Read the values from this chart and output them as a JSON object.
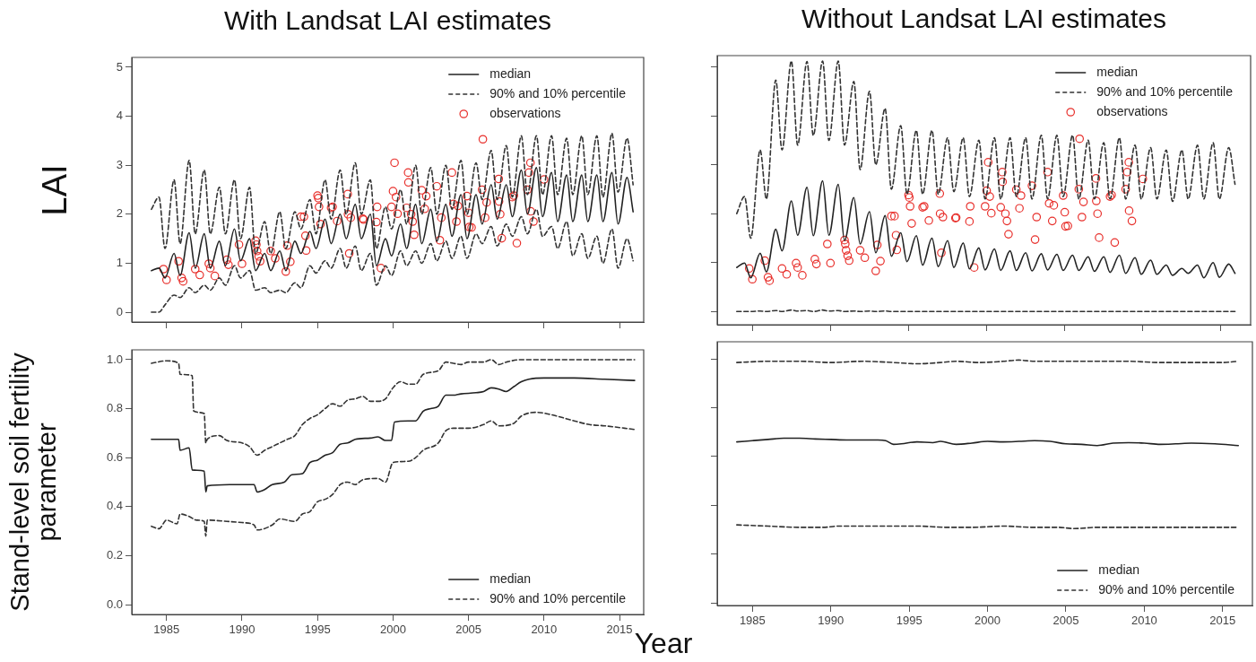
{
  "chart_data": [
    {
      "type": "line",
      "title": "With Landsat LAI estimates",
      "ylabel": "LAI",
      "xlim": [
        1982.7,
        2016.6
      ],
      "xticks": [
        1985,
        1990,
        1995,
        2000,
        2005,
        2010,
        2015
      ],
      "ylim": [
        -0.2,
        5.2
      ],
      "yticks": [
        0,
        1,
        2,
        3,
        4,
        5
      ],
      "tick_labels": "y",
      "grid": false,
      "legend": "top right",
      "marker": "none",
      "x": [
        1984,
        1984.5,
        1984.9,
        1985.5,
        1985.9,
        1986.5,
        1986.9,
        1987.5,
        1987.9,
        1988.5,
        1988.9,
        1989.5,
        1989.9,
        1990.5,
        1990.9,
        1991.5,
        1991.9,
        1992.5,
        1992.9,
        1993.5,
        1993.9,
        1994.5,
        1994.9,
        1995.5,
        1995.9,
        1996.5,
        1996.9,
        1997.5,
        1997.9,
        1998.5,
        1998.9,
        1999.5,
        1999.9,
        2000.5,
        2000.9,
        2001.5,
        2001.9,
        2002.5,
        2002.9,
        2003.5,
        2003.9,
        2004.5,
        2004.9,
        2005.5,
        2005.9,
        2006.5,
        2006.9,
        2007.5,
        2007.9,
        2008.5,
        2008.9,
        2009.5,
        2009.9,
        2010.5,
        2010.9,
        2011.5,
        2011.9,
        2012.5,
        2012.9,
        2013.5,
        2013.9,
        2014.5,
        2014.9,
        2015.5,
        2015.9
      ],
      "series": [
        {
          "name": "median",
          "color": "#222222",
          "line_style": "solid",
          "values": [
            0.85,
            0.9,
            0.7,
            1.2,
            0.75,
            1.62,
            0.9,
            1.6,
            0.9,
            1.45,
            0.95,
            1.7,
            1.05,
            1.5,
            0.85,
            1.2,
            0.85,
            1.25,
            0.85,
            1.45,
            1.2,
            1.65,
            1.3,
            1.9,
            1.4,
            2.0,
            1.5,
            2.2,
            1.5,
            2.0,
            0.95,
            1.5,
            1.15,
            1.8,
            1.3,
            2.2,
            1.4,
            2.1,
            1.45,
            2.2,
            1.55,
            2.4,
            1.5,
            2.4,
            1.8,
            2.6,
            1.9,
            2.6,
            1.95,
            2.9,
            2.0,
            2.95,
            1.95,
            2.85,
            1.85,
            2.8,
            1.85,
            2.8,
            1.85,
            2.8,
            1.85,
            2.85,
            1.8,
            2.75,
            2.05
          ]
        },
        {
          "name": "90% and 10% percentile",
          "color": "#333333",
          "line_style": "dashed",
          "values": [
            2.1,
            2.35,
            1.3,
            2.7,
            1.4,
            3.1,
            1.6,
            2.9,
            1.6,
            2.55,
            1.6,
            2.7,
            1.5,
            2.55,
            1.2,
            1.85,
            1.2,
            2.05,
            1.3,
            2.05,
            1.7,
            2.3,
            1.6,
            2.7,
            1.9,
            2.9,
            2.0,
            3.05,
            2.0,
            2.7,
            1.3,
            2.15,
            1.7,
            2.5,
            1.8,
            3.0,
            2.0,
            2.95,
            2.0,
            3.0,
            2.1,
            3.1,
            2.0,
            3.05,
            2.3,
            3.3,
            2.3,
            3.4,
            2.35,
            3.6,
            2.4,
            3.6,
            2.4,
            3.6,
            2.4,
            3.55,
            2.4,
            3.6,
            2.4,
            3.6,
            2.35,
            3.65,
            2.45,
            3.55,
            2.6
          ]
        },
        {
          "color": "#333333",
          "line_style": "dashed",
          "values": [
            0.0,
            0.0,
            0.15,
            0.35,
            0.3,
            0.5,
            0.4,
            0.55,
            0.45,
            0.7,
            0.55,
            0.95,
            0.7,
            0.85,
            0.45,
            0.5,
            0.4,
            0.45,
            0.4,
            0.6,
            0.5,
            0.95,
            0.8,
            1.05,
            0.9,
            1.3,
            0.9,
            1.35,
            0.85,
            1.2,
            0.55,
            0.95,
            0.75,
            1.25,
            0.95,
            1.25,
            1.0,
            1.4,
            1.05,
            1.45,
            1.1,
            1.55,
            1.1,
            1.6,
            1.4,
            1.75,
            1.35,
            1.8,
            1.55,
            1.95,
            1.6,
            2.1,
            1.55,
            1.75,
            1.3,
            1.85,
            1.15,
            1.6,
            1.1,
            1.55,
            1.0,
            1.7,
            0.9,
            1.5,
            1.05
          ]
        },
        {
          "name": "observations",
          "type": "scatter",
          "marker": "circle",
          "color": "#e8302c",
          "x": [
            1984.8,
            1985.0,
            1985.8,
            1986.0,
            1986.1,
            1986.9,
            1987.2,
            1987.8,
            1987.9,
            1988.2,
            1989.0,
            1989.1,
            1989.8,
            1990.0,
            1990.9,
            1990.95,
            1991.0,
            1991.1,
            1991.2,
            1991.9,
            1992.2,
            1992.9,
            1993.0,
            1993.2,
            1993.9,
            1994.1,
            1994.2,
            1994.25,
            1995.0,
            1995.05,
            1995.1,
            1995.2,
            1995.9,
            1996.0,
            1996.3,
            1997.0,
            1997.02,
            1997.1,
            1997.2,
            1998.0,
            1998.05,
            1998.9,
            1998.95,
            1999.2,
            1999.9,
            2000.0,
            2000.1,
            2000.2,
            2000.3,
            2000.9,
            2001.0,
            2001.02,
            2001.2,
            2001.3,
            2001.4,
            2001.9,
            2002.1,
            2002.2,
            2002.9,
            2003.1,
            2003.2,
            2003.9,
            2004.0,
            2004.2,
            2004.3,
            2004.9,
            2005.0,
            2005.05,
            2005.2,
            2005.9,
            2005.95,
            2006.1,
            2006.2,
            2007.0,
            2007.02,
            2007.1,
            2007.2,
            2007.9,
            2008.0,
            2008.2,
            2008.9,
            2009.0,
            2009.1,
            2009.12,
            2009.3,
            2010.0
          ],
          "values": [
            0.88,
            0.66,
            1.04,
            0.7,
            0.63,
            0.88,
            0.76,
            0.99,
            0.9,
            0.74,
            1.07,
            0.97,
            1.38,
            0.99,
            1.46,
            1.38,
            1.25,
            1.14,
            1.04,
            1.25,
            1.1,
            0.83,
            1.36,
            1.03,
            1.95,
            1.95,
            1.56,
            1.26,
            2.38,
            2.33,
            2.15,
            1.8,
            2.13,
            2.15,
            1.86,
            2.41,
            2.0,
            1.2,
            1.93,
            1.91,
            1.89,
            1.84,
            2.15,
            0.9,
            2.15,
            2.47,
            3.05,
            2.35,
            2.01,
            2.13,
            2.85,
            2.65,
            2.0,
            1.85,
            1.58,
            2.49,
            2.11,
            2.37,
            2.57,
            1.47,
            1.93,
            2.85,
            2.21,
            1.85,
            2.17,
            2.37,
            2.03,
            1.74,
            1.73,
            2.5,
            3.53,
            1.93,
            2.24,
            2.72,
            2.26,
            2.0,
            1.51,
            2.35,
            2.38,
            1.41,
            2.5,
            2.85,
            3.05,
            2.06,
            1.85,
            2.71
          ]
        }
      ]
    },
    {
      "type": "line",
      "title": "Without Landsat LAI estimates",
      "xlim": [
        1982.75,
        2016.9
      ],
      "xticks": [
        1985,
        1990,
        1995,
        2000,
        2005,
        2010,
        2015
      ],
      "ylim": [
        -0.27,
        5.23
      ],
      "yticks": [
        0,
        1,
        2,
        3,
        4,
        5
      ],
      "tick_labels": false,
      "grid": false,
      "legend": "top right",
      "marker": "none",
      "x": [
        1984,
        1984.5,
        1984.9,
        1985.5,
        1985.9,
        1986.5,
        1986.9,
        1987.5,
        1987.9,
        1988.5,
        1988.9,
        1989.5,
        1989.9,
        1990.5,
        1990.9,
        1991.5,
        1991.9,
        1992.5,
        1992.9,
        1993.5,
        1993.9,
        1994.5,
        1994.9,
        1995.5,
        1995.9,
        1996.5,
        1996.9,
        1997.5,
        1997.9,
        1998.5,
        1998.9,
        1999.5,
        1999.9,
        2000.5,
        2000.9,
        2001.5,
        2001.9,
        2002.5,
        2002.9,
        2003.5,
        2003.9,
        2004.5,
        2004.9,
        2005.5,
        2005.9,
        2006.5,
        2006.9,
        2007.5,
        2007.9,
        2008.5,
        2008.9,
        2009.5,
        2009.9,
        2010.5,
        2010.9,
        2011.5,
        2011.9,
        2012.5,
        2012.9,
        2013.5,
        2013.9,
        2014.5,
        2014.9,
        2015.5,
        2015.9
      ],
      "series": [
        {
          "name": "median",
          "color": "#222222",
          "line_style": "solid",
          "values": [
            0.9,
            0.99,
            0.69,
            1.19,
            0.81,
            1.68,
            1.24,
            2.26,
            1.56,
            2.54,
            1.55,
            2.67,
            1.56,
            2.6,
            1.45,
            2.33,
            1.38,
            2.04,
            1.2,
            1.96,
            1.13,
            1.61,
            1.02,
            1.55,
            0.95,
            1.5,
            0.92,
            1.45,
            0.9,
            1.4,
            0.87,
            1.3,
            0.85,
            1.28,
            0.84,
            1.24,
            0.84,
            1.2,
            0.83,
            1.18,
            0.85,
            1.17,
            0.84,
            1.15,
            0.84,
            1.12,
            0.82,
            1.12,
            0.8,
            1.15,
            0.78,
            1.1,
            0.76,
            1.05,
            0.76,
            0.95,
            0.74,
            0.88,
            0.78,
            0.95,
            0.69,
            1.0,
            0.7,
            0.97,
            0.78
          ]
        },
        {
          "name": "90% and 10% percentile",
          "color": "#333333",
          "line_style": "dashed",
          "values": [
            2.0,
            2.35,
            1.5,
            3.3,
            2.3,
            4.73,
            3.3,
            5.12,
            3.4,
            5.11,
            3.6,
            5.12,
            3.5,
            5.12,
            3.4,
            4.7,
            2.9,
            4.5,
            3.0,
            4.15,
            2.5,
            3.8,
            2.4,
            3.7,
            2.4,
            3.7,
            2.4,
            3.55,
            2.45,
            3.55,
            2.35,
            3.5,
            2.3,
            3.55,
            2.3,
            3.55,
            2.35,
            3.55,
            2.3,
            3.6,
            2.3,
            3.6,
            2.35,
            3.6,
            2.3,
            3.5,
            2.3,
            3.45,
            2.3,
            3.55,
            2.3,
            3.4,
            2.3,
            3.35,
            2.3,
            3.3,
            2.25,
            3.3,
            2.3,
            3.4,
            2.3,
            3.45,
            2.3,
            3.35,
            2.6
          ]
        },
        {
          "color": "#333333",
          "line_style": "dashed",
          "values": [
            0,
            0,
            0,
            0.01,
            0,
            0.02,
            0,
            0.03,
            0.01,
            0.02,
            0,
            0.03,
            0.01,
            0.02,
            0,
            0.01,
            0,
            0.01,
            0,
            0.01,
            0,
            0,
            0,
            0,
            0,
            0,
            0,
            0,
            0,
            0,
            0,
            0,
            0,
            0,
            0,
            0,
            0,
            0,
            0,
            0,
            0,
            0,
            0,
            0,
            0,
            0,
            0,
            0,
            0,
            0,
            0,
            0,
            0,
            0,
            0,
            0,
            0,
            0,
            0,
            0,
            0,
            0,
            0,
            0,
            0
          ]
        },
        {
          "name": "observations",
          "type": "scatter",
          "marker": "circle",
          "color": "#e8302c",
          "x": [
            1984.8,
            1985.0,
            1985.8,
            1986.0,
            1986.1,
            1986.9,
            1987.2,
            1987.8,
            1987.9,
            1988.2,
            1989.0,
            1989.1,
            1989.8,
            1990.0,
            1990.9,
            1990.95,
            1991.0,
            1991.1,
            1991.2,
            1991.9,
            1992.2,
            1992.9,
            1993.0,
            1993.2,
            1993.9,
            1994.1,
            1994.2,
            1994.25,
            1995.0,
            1995.05,
            1995.1,
            1995.2,
            1995.9,
            1996.0,
            1996.3,
            1997.0,
            1997.02,
            1997.1,
            1997.2,
            1998.0,
            1998.05,
            1998.9,
            1998.95,
            1999.2,
            1999.9,
            2000.0,
            2000.1,
            2000.2,
            2000.3,
            2000.9,
            2001.0,
            2001.02,
            2001.2,
            2001.3,
            2001.4,
            2001.9,
            2002.1,
            2002.2,
            2002.9,
            2003.1,
            2003.2,
            2003.9,
            2004.0,
            2004.2,
            2004.3,
            2004.9,
            2005.0,
            2005.05,
            2005.2,
            2005.9,
            2005.95,
            2006.1,
            2006.2,
            2007.0,
            2007.02,
            2007.1,
            2007.2,
            2007.9,
            2008.0,
            2008.2,
            2008.9,
            2009.0,
            2009.1,
            2009.12,
            2009.3,
            2010.0
          ],
          "values": [
            0.88,
            0.66,
            1.04,
            0.7,
            0.63,
            0.88,
            0.76,
            0.99,
            0.9,
            0.74,
            1.07,
            0.97,
            1.38,
            0.99,
            1.46,
            1.38,
            1.25,
            1.14,
            1.04,
            1.25,
            1.1,
            0.83,
            1.36,
            1.03,
            1.95,
            1.95,
            1.56,
            1.26,
            2.38,
            2.33,
            2.15,
            1.8,
            2.13,
            2.15,
            1.86,
            2.41,
            2.0,
            1.2,
            1.93,
            1.91,
            1.92,
            1.84,
            2.15,
            0.9,
            2.15,
            2.47,
            3.05,
            2.35,
            2.01,
            2.13,
            2.85,
            2.65,
            2.0,
            1.85,
            1.58,
            2.49,
            2.11,
            2.37,
            2.57,
            1.47,
            1.93,
            2.85,
            2.21,
            1.85,
            2.17,
            2.37,
            2.03,
            1.74,
            1.75,
            2.5,
            3.53,
            1.93,
            2.24,
            2.72,
            2.26,
            2.0,
            1.51,
            2.35,
            2.38,
            1.41,
            2.5,
            2.85,
            3.05,
            2.06,
            1.85,
            2.71
          ]
        }
      ]
    },
    {
      "type": "line",
      "ylabel": "Stand-level soil fertility parameter",
      "xlabel": "Year",
      "xlim": [
        1982.7,
        2016.6
      ],
      "xticks": [
        1985,
        1990,
        1995,
        2000,
        2005,
        2010,
        2015
      ],
      "ylim": [
        -0.04,
        1.04
      ],
      "yticks": [
        {
          "value": 0,
          "label": "0.0"
        },
        {
          "value": 0.2,
          "label": "0.2"
        },
        {
          "value": 0.4,
          "label": "0.4"
        },
        {
          "value": 0.6,
          "label": "0.6"
        },
        {
          "value": 0.8,
          "label": "0.8"
        },
        {
          "value": 1,
          "label": "1.0"
        }
      ],
      "grid": false,
      "legend": "bottom right",
      "marker": "none",
      "series": [
        {
          "name": "median",
          "color": "#222222",
          "line_style": "solid",
          "x": [
            1984,
            1985.8,
            1985.9,
            1986.5,
            1986.7,
            1987.5,
            1987.6,
            1987.7,
            1989.5,
            1990.8,
            1991,
            1991.5,
            1992,
            1992.8,
            1993.3,
            1994,
            1994.5,
            1995,
            1995.5,
            1996,
            1996.5,
            1997,
            1997.5,
            1998.5,
            1999,
            1999.5,
            1999.9,
            2000.1,
            2001,
            2001.5,
            2002,
            2002.5,
            2003,
            2003.5,
            2004,
            2004.5,
            2005.5,
            2006,
            2006.5,
            2007,
            2007.5,
            2008,
            2008.5,
            2009,
            2010,
            2012,
            2014,
            2016
          ],
          "values": [
            0.675,
            0.675,
            0.63,
            0.64,
            0.55,
            0.545,
            0.46,
            0.485,
            0.49,
            0.49,
            0.46,
            0.47,
            0.49,
            0.5,
            0.53,
            0.535,
            0.58,
            0.59,
            0.61,
            0.62,
            0.655,
            0.66,
            0.675,
            0.68,
            0.685,
            0.67,
            0.67,
            0.745,
            0.75,
            0.75,
            0.79,
            0.8,
            0.81,
            0.855,
            0.855,
            0.86,
            0.865,
            0.87,
            0.885,
            0.88,
            0.87,
            0.89,
            0.91,
            0.92,
            0.925,
            0.925,
            0.92,
            0.915
          ]
        },
        {
          "name": "90% and 10% percentile",
          "color": "#333333",
          "line_style": "dashed",
          "x": [
            1984,
            1985,
            1985.8,
            1985.9,
            1986.7,
            1986.8,
            1987.5,
            1987.6,
            1987.7,
            1988.5,
            1989,
            1990,
            1990.5,
            1991,
            1991.5,
            1992,
            1992.5,
            1993,
            1993.5,
            1994,
            1994.5,
            1995,
            1995.5,
            1996,
            1996.5,
            1997,
            1997.5,
            1998,
            1998.5,
            1999,
            1999.5,
            2000,
            2000.5,
            2001,
            2001.5,
            2002,
            2003,
            2003.5,
            2004,
            2004.5,
            2005,
            2006,
            2006.5,
            2007,
            2007.5,
            2008.5,
            2010,
            2016
          ],
          "values": [
            0.985,
            0.995,
            0.985,
            0.94,
            0.935,
            0.79,
            0.78,
            0.66,
            0.675,
            0.69,
            0.67,
            0.66,
            0.645,
            0.61,
            0.63,
            0.645,
            0.66,
            0.675,
            0.69,
            0.735,
            0.76,
            0.775,
            0.8,
            0.82,
            0.81,
            0.835,
            0.84,
            0.85,
            0.83,
            0.83,
            0.84,
            0.885,
            0.91,
            0.9,
            0.9,
            0.94,
            0.955,
            0.99,
            0.985,
            0.98,
            0.99,
            0.99,
            1.0,
            0.98,
            0.99,
            1.0,
            1.0,
            1.0
          ]
        },
        {
          "color": "#333333",
          "line_style": "dashed",
          "x": [
            1984,
            1984.5,
            1985,
            1985.7,
            1985.9,
            1986.5,
            1987,
            1987.5,
            1987.6,
            1987.7,
            1989,
            1990,
            1990.8,
            1991,
            1992,
            1992.5,
            1993.5,
            1994,
            1994.5,
            1995,
            1995.5,
            1996,
            1996.5,
            1997,
            1997.5,
            1998,
            1999,
            1999.5,
            2000,
            2001,
            2001.5,
            2002,
            2003,
            2003.5,
            2004,
            2005,
            2006,
            2006.5,
            2007,
            2008,
            2008.5,
            2009.5,
            2010.5,
            2012,
            2013,
            2014,
            2016
          ],
          "values": [
            0.32,
            0.31,
            0.345,
            0.33,
            0.37,
            0.36,
            0.345,
            0.34,
            0.28,
            0.345,
            0.34,
            0.335,
            0.325,
            0.305,
            0.325,
            0.35,
            0.34,
            0.37,
            0.38,
            0.42,
            0.43,
            0.45,
            0.49,
            0.5,
            0.49,
            0.51,
            0.515,
            0.5,
            0.58,
            0.585,
            0.6,
            0.63,
            0.66,
            0.71,
            0.72,
            0.72,
            0.735,
            0.75,
            0.73,
            0.74,
            0.77,
            0.785,
            0.775,
            0.75,
            0.735,
            0.73,
            0.715
          ]
        }
      ]
    },
    {
      "type": "line",
      "xlim": [
        1982.75,
        2016.9
      ],
      "xticks": [
        1985,
        1990,
        1995,
        2000,
        2005,
        2010,
        2015
      ],
      "ylim": [
        -0.01,
        1.07
      ],
      "yticks": [
        0,
        0.2,
        0.4,
        0.6,
        0.8,
        1
      ],
      "tick_labels": "x",
      "grid": false,
      "legend": "bottom right",
      "marker": "none",
      "series": [
        {
          "name": "median",
          "color": "#222222",
          "line_style": "solid",
          "x": [
            1984,
            1985,
            1986,
            1987,
            1988,
            1989,
            1990,
            1991,
            1992,
            1993,
            1993.5,
            1994,
            1994.5,
            1995.5,
            1996.5,
            1997,
            1998,
            1999,
            2000,
            2001,
            2002,
            2003,
            2004,
            2005,
            2006,
            2007,
            2008,
            2009,
            2010,
            2011,
            2012,
            2013,
            2014.5,
            2016
          ],
          "values": [
            0.66,
            0.665,
            0.67,
            0.675,
            0.675,
            0.672,
            0.67,
            0.668,
            0.668,
            0.668,
            0.665,
            0.65,
            0.652,
            0.66,
            0.657,
            0.662,
            0.65,
            0.655,
            0.662,
            0.66,
            0.662,
            0.665,
            0.662,
            0.652,
            0.65,
            0.645,
            0.655,
            0.657,
            0.655,
            0.65,
            0.652,
            0.655,
            0.652,
            0.645
          ]
        },
        {
          "name": "90% and 10% percentile",
          "color": "#333333",
          "line_style": "dashed",
          "x": [
            1984,
            1986,
            1988,
            1990,
            1992,
            1994,
            1995.5,
            1997,
            1998,
            1999.5,
            2001,
            2002,
            2003,
            2005,
            2007,
            2009,
            2011,
            2013,
            2015,
            2016
          ],
          "values": [
            0.985,
            0.99,
            0.99,
            0.985,
            0.99,
            0.985,
            0.98,
            0.985,
            0.99,
            0.985,
            0.99,
            0.995,
            0.99,
            0.99,
            0.99,
            0.99,
            0.985,
            0.985,
            0.985,
            0.99
          ]
        },
        {
          "color": "#333333",
          "line_style": "dashed",
          "x": [
            1984,
            1986,
            1988,
            1989.5,
            1990.5,
            1992,
            1994,
            1995.5,
            1997.5,
            1999,
            2001,
            2003,
            2004.5,
            2005.5,
            2007,
            2009,
            2011,
            2013,
            2015,
            2016
          ],
          "values": [
            0.32,
            0.315,
            0.31,
            0.31,
            0.315,
            0.315,
            0.315,
            0.315,
            0.31,
            0.31,
            0.315,
            0.31,
            0.31,
            0.305,
            0.31,
            0.31,
            0.31,
            0.31,
            0.31,
            0.31
          ]
        }
      ]
    }
  ]
}
